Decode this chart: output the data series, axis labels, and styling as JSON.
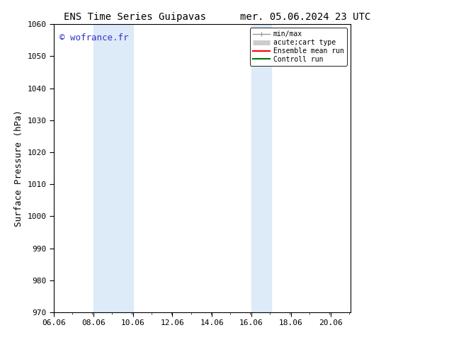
{
  "title_left": "ENS Time Series Guipavas",
  "title_right": "mer. 05.06.2024 23 UTC",
  "ylabel": "Surface Pressure (hPa)",
  "ylim": [
    970,
    1060
  ],
  "yticks": [
    970,
    980,
    990,
    1000,
    1010,
    1020,
    1030,
    1040,
    1050,
    1060
  ],
  "xlim_start": 6.06,
  "xlim_end": 21.06,
  "xticks": [
    6.06,
    8.06,
    10.06,
    12.06,
    14.06,
    16.06,
    18.06,
    20.06
  ],
  "xtick_labels": [
    "06.06",
    "08.06",
    "10.06",
    "12.06",
    "14.06",
    "16.06",
    "18.06",
    "20.06"
  ],
  "shaded_bands": [
    {
      "xmin": 8.06,
      "xmax": 10.06
    },
    {
      "xmin": 16.06,
      "xmax": 17.06
    }
  ],
  "shaded_color": "#ddeaf8",
  "background_color": "#ffffff",
  "plot_bg_color": "#ffffff",
  "watermark": "© wofrance.fr",
  "watermark_color": "#3333cc",
  "legend_entries": [
    {
      "label": "min/max",
      "color": "#999999",
      "lw": 1.0
    },
    {
      "label": "acute;cart type",
      "color": "#cccccc",
      "lw": 5
    },
    {
      "label": "Ensemble mean run",
      "color": "#ff0000",
      "lw": 1.5
    },
    {
      "label": "Controll run",
      "color": "#007700",
      "lw": 1.5
    }
  ],
  "title_fontsize": 10,
  "tick_fontsize": 8,
  "ylabel_fontsize": 9,
  "watermark_fontsize": 9,
  "legend_fontsize": 7
}
